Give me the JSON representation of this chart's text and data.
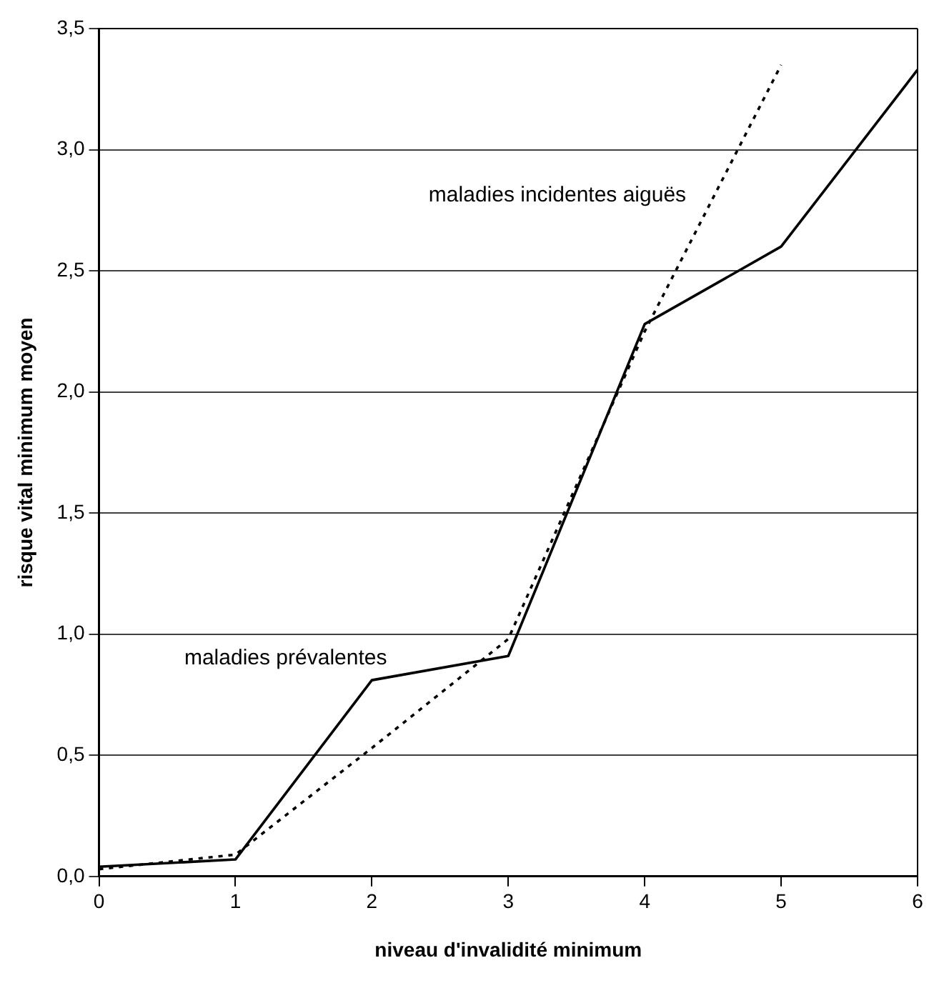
{
  "chart_data": {
    "type": "line",
    "xlabel": "niveau d'invalidité minimum",
    "ylabel": "risque vital minimum moyen",
    "x": [
      0,
      1,
      2,
      3,
      4,
      5,
      6
    ],
    "series": [
      {
        "name": "maladies prévalentes",
        "color": "#000000",
        "line_style": "solid",
        "values": [
          0.04,
          0.07,
          0.81,
          0.91,
          2.28,
          2.6,
          3.33
        ]
      },
      {
        "name": "maladies incidentes aiguës",
        "color": "#000000",
        "line_style": "dotted",
        "x": [
          0,
          1,
          2,
          3,
          4,
          5
        ],
        "values": [
          0.03,
          0.09,
          0.53,
          0.98,
          2.25,
          3.35
        ]
      }
    ],
    "xlim": [
      0,
      6
    ],
    "xticks": [
      0,
      1,
      2,
      3,
      4,
      5,
      6
    ],
    "ylim": [
      0,
      3.5
    ],
    "yticks": [
      {
        "value": 0,
        "label": "0,0"
      },
      {
        "value": 0.5,
        "label": "0,5"
      },
      {
        "value": 1,
        "label": "1,0"
      },
      {
        "value": 1.5,
        "label": "1,5"
      },
      {
        "value": 2,
        "label": "2,0"
      },
      {
        "value": 2.5,
        "label": "2,5"
      },
      {
        "value": 3,
        "label": "3,0"
      },
      {
        "value": 3.5,
        "label": "3,5"
      }
    ],
    "grid": "y",
    "legend": false,
    "marker": "none"
  }
}
